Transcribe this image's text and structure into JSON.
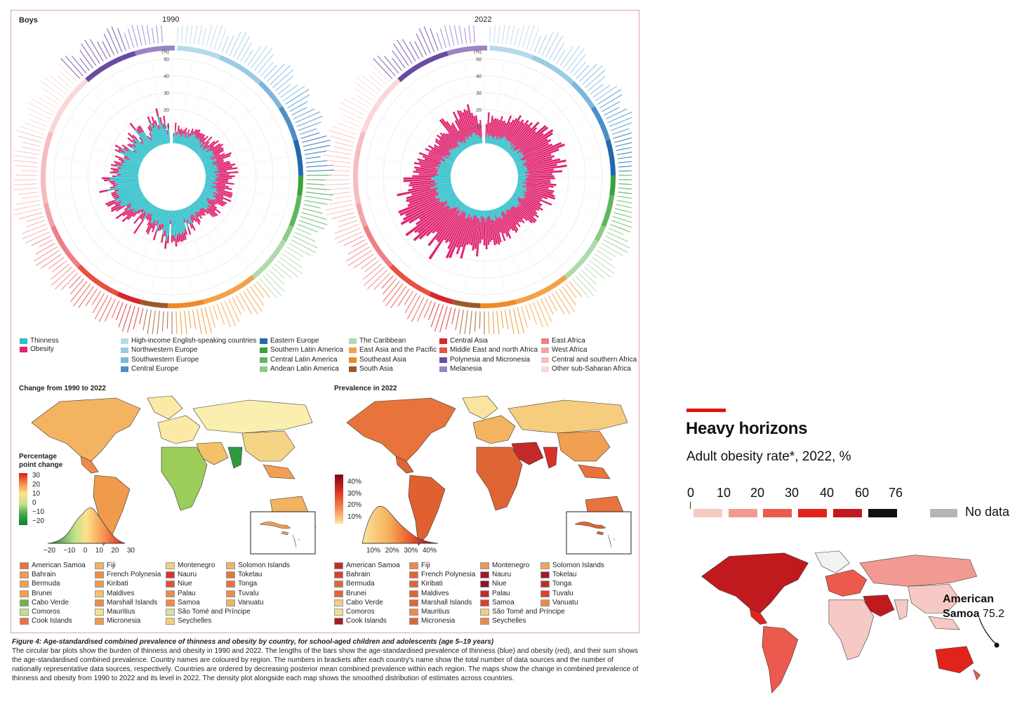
{
  "figure": {
    "panel_label": "Boys",
    "year_left": "1990",
    "year_right": "2022",
    "axis_unit": "(%)",
    "axis_ticks": [
      "50",
      "40",
      "30",
      "20",
      "10"
    ],
    "type_legend": [
      {
        "label": "Thinness",
        "color": "#2bbfc9"
      },
      {
        "label": "Obesity",
        "color": "#e0246f"
      }
    ],
    "region_legend": [
      {
        "label": "High-income English-speaking countries",
        "color": "#b7d9ec"
      },
      {
        "label": "Northwestern Europe",
        "color": "#9ccbe4"
      },
      {
        "label": "Southwestern Europe",
        "color": "#7db7db"
      },
      {
        "label": "Central Europe",
        "color": "#4a90c8"
      },
      {
        "label": "Eastern Europe",
        "color": "#2469aa"
      },
      {
        "label": "Southern Latin America",
        "color": "#37a33c"
      },
      {
        "label": "Central Latin America",
        "color": "#5fb75c"
      },
      {
        "label": "Andean Latin America",
        "color": "#8acc83"
      },
      {
        "label": "The Caribbean",
        "color": "#aedbab"
      },
      {
        "label": "East Asia and the Pacific",
        "color": "#f4a24a"
      },
      {
        "label": "Southeast Asia",
        "color": "#f08a24"
      },
      {
        "label": "South Asia",
        "color": "#9c5a2c"
      },
      {
        "label": "Central Asia",
        "color": "#d7262d"
      },
      {
        "label": "Middle East and north Africa",
        "color": "#e8503f"
      },
      {
        "label": "Polynesia and Micronesia",
        "color": "#6a4ba3"
      },
      {
        "label": "Melanesia",
        "color": "#9a84c4"
      },
      {
        "label": "East Africa",
        "color": "#ef7e86"
      },
      {
        "label": "West Africa",
        "color": "#f3a3a6"
      },
      {
        "label": "Central and southern Africa",
        "color": "#f7bcbe"
      },
      {
        "label": "Other sub-Saharan Africa",
        "color": "#fad7d8"
      }
    ],
    "map_left_title": "Change from 1990 to 2022",
    "map_right_title": "Prevalence in 2022",
    "change_scale_title": "Percentage point change",
    "change_scale_ticks": [
      "30",
      "20",
      "10",
      "0",
      "−10",
      "−20"
    ],
    "change_density_ticks": [
      "−20",
      "−10",
      "0",
      "10",
      "20",
      "30"
    ],
    "prev_scale_ticks": [
      "40%",
      "30%",
      "20%",
      "10%"
    ],
    "prev_density_ticks": [
      "10%",
      "20%",
      "30%",
      "40%"
    ],
    "small_countries_left": [
      {
        "label": "American Samoa",
        "color": "#e8743b"
      },
      {
        "label": "Bahrain",
        "color": "#f09a4c"
      },
      {
        "label": "Bermuda",
        "color": "#f0a050"
      },
      {
        "label": "Brunei",
        "color": "#f0a050"
      },
      {
        "label": "Cabo Verde",
        "color": "#6fb548"
      },
      {
        "label": "Comoros",
        "color": "#c5df8c"
      },
      {
        "label": "Cook Islands",
        "color": "#e8743b"
      },
      {
        "label": "Fiji",
        "color": "#f3b361"
      },
      {
        "label": "French Polynesia",
        "color": "#ee8c47"
      },
      {
        "label": "Kiribati",
        "color": "#f09a4c"
      },
      {
        "label": "Maldives",
        "color": "#f4c36b"
      },
      {
        "label": "Marshall Islands",
        "color": "#ee8c47"
      },
      {
        "label": "Mauritius",
        "color": "#f8e08a"
      },
      {
        "label": "Micronesia",
        "color": "#f09a4c"
      },
      {
        "label": "Montenegro",
        "color": "#f6cf7a"
      },
      {
        "label": "Nauru",
        "color": "#d9302a"
      },
      {
        "label": "Niue",
        "color": "#e2502f"
      },
      {
        "label": "Palau",
        "color": "#ee8c47"
      },
      {
        "label": "Samoa",
        "color": "#ee8c47"
      },
      {
        "label": "São Tomé and Príncipe",
        "color": "#d3e69a"
      },
      {
        "label": "Seychelles",
        "color": "#f6cf7a"
      },
      {
        "label": "Solomon Islands",
        "color": "#f3b361"
      },
      {
        "label": "Tokelau",
        "color": "#e8743b"
      },
      {
        "label": "Tonga",
        "color": "#e8743b"
      },
      {
        "label": "Tuvalu",
        "color": "#ee8c47"
      },
      {
        "label": "Vanuatu",
        "color": "#f3b361"
      }
    ],
    "small_countries_right": [
      {
        "label": "American Samoa",
        "color": "#c42a2a"
      },
      {
        "label": "Bahrain",
        "color": "#d9412b"
      },
      {
        "label": "Bermuda",
        "color": "#e06535"
      },
      {
        "label": "Brunei",
        "color": "#e06535"
      },
      {
        "label": "Cabo Verde",
        "color": "#f6cc7d"
      },
      {
        "label": "Comoros",
        "color": "#f8dc8e"
      },
      {
        "label": "Cook Islands",
        "color": "#a3192c"
      },
      {
        "label": "Fiji",
        "color": "#eb8a4c"
      },
      {
        "label": "French Polynesia",
        "color": "#e06535"
      },
      {
        "label": "Kiribati",
        "color": "#e06535"
      },
      {
        "label": "Maldives",
        "color": "#e06535"
      },
      {
        "label": "Marshall Islands",
        "color": "#e06535"
      },
      {
        "label": "Mauritius",
        "color": "#eb8a4c"
      },
      {
        "label": "Micronesia",
        "color": "#e06535"
      },
      {
        "label": "Montenegro",
        "color": "#eb9a55"
      },
      {
        "label": "Nauru",
        "color": "#a3192c"
      },
      {
        "label": "Niue",
        "color": "#8a1429"
      },
      {
        "label": "Palau",
        "color": "#c42a2a"
      },
      {
        "label": "Samoa",
        "color": "#d9412b"
      },
      {
        "label": "São Tomé and Príncipe",
        "color": "#f6cc7d"
      },
      {
        "label": "Seychelles",
        "color": "#eb8a4c"
      },
      {
        "label": "Solomon Islands",
        "color": "#f0a35a"
      },
      {
        "label": "Tokelau",
        "color": "#a3192c"
      },
      {
        "label": "Tonga",
        "color": "#c42a2a"
      },
      {
        "label": "Tuvalu",
        "color": "#d9412b"
      },
      {
        "label": "Vanuatu",
        "color": "#eb8a4c"
      }
    ],
    "caption_title": "Figure 4: Age-standardised combined prevalence of thinness and obesity by country, for school-aged children and adolescents (age 5–19 years)",
    "caption_body": "The circular bar plots show the burden of thinness and obesity in 1990 and 2022. The lengths of the bars show the age-standardised prevalence of thinness (blue) and obesity (red), and their sum shows the age-standardised combined prevalence. Country names are coloured by region. The numbers in brackets after each country's name show the total number of data sources and the number of nationally representative data sources, respectively. Countries are ordered by decreasing posterior mean combined prevalence within each region. The maps show the change in combined prevalence of thinness and obesity from 1990 to 2022 and its level in 2022. The density plot alongside each map shows the smoothed distribution of estimates across countries."
  },
  "economist": {
    "title": "Heavy horizons",
    "subtitle": "Adult obesity rate*, 2022, %",
    "scale_labels": [
      "0",
      "10",
      "20",
      "30",
      "40",
      "60",
      "76"
    ],
    "scale_colors": [
      "#f7c9c4",
      "#f29a92",
      "#ec5a4d",
      "#e0241c",
      "#c01a1f",
      "#111111"
    ],
    "no_data_label": "No data",
    "no_data_color": "#b5b5b5",
    "accent_color": "#e3120b",
    "annotation_name": "American Samoa",
    "annotation_value": "75.2"
  }
}
